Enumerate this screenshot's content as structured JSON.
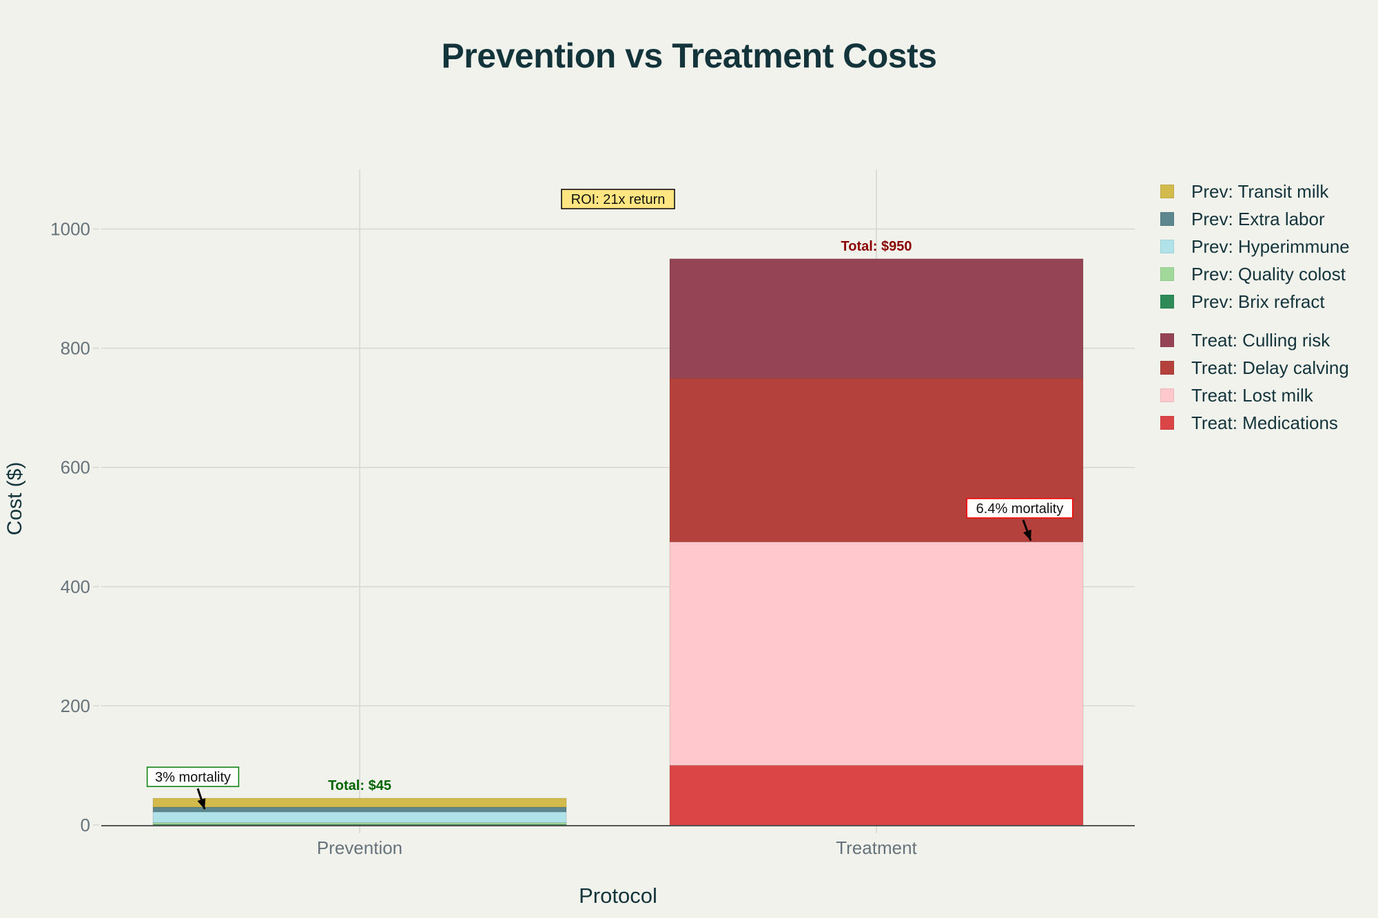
{
  "chart_data": {
    "type": "bar",
    "barmode": "stack",
    "title": "Prevention vs Treatment Costs",
    "xlabel": "Protocol",
    "ylabel": "Cost ($)",
    "categories": [
      "Prevention",
      "Treatment"
    ],
    "ylim": [
      0,
      1100
    ],
    "yticks": [
      0,
      200,
      400,
      600,
      800,
      1000
    ],
    "grid": true,
    "legend_position": "right",
    "series": [
      {
        "name": "Prev: Brix refract",
        "category": "Prevention",
        "value": 1,
        "color": "#2e8b57"
      },
      {
        "name": "Prev: Quality colost",
        "category": "Prevention",
        "value": 3,
        "color": "#a1d99b"
      },
      {
        "name": "Prev: Hyperimmune",
        "category": "Prevention",
        "value": 18,
        "color": "#b0e2ea"
      },
      {
        "name": "Prev: Extra labor",
        "category": "Prevention",
        "value": 8,
        "color": "#5d878f"
      },
      {
        "name": "Prev: Transit milk",
        "category": "Prevention",
        "value": 15,
        "color": "#d2ba4c"
      },
      {
        "name": "Treat: Medications",
        "category": "Treatment",
        "value": 100,
        "color": "#db4545"
      },
      {
        "name": "Treat: Lost milk",
        "category": "Treatment",
        "value": 375,
        "color": "#ffc8cc"
      },
      {
        "name": "Treat: Delay calving",
        "category": "Treatment",
        "value": 275,
        "color": "#b4413c"
      },
      {
        "name": "Treat: Culling risk",
        "category": "Treatment",
        "value": 200,
        "color": "#944454"
      }
    ],
    "legend_groups": [
      [
        "Prev: Transit milk",
        "Prev: Extra labor",
        "Prev: Hyperimmune",
        "Prev: Quality colost",
        "Prev: Brix refract"
      ],
      [
        "Treat: Culling risk",
        "Treat: Delay calving",
        "Treat: Lost milk",
        "Treat: Medications"
      ]
    ],
    "annotations": [
      {
        "id": "total-prevention",
        "text": "Total: $45",
        "category": "Prevention",
        "y": 45,
        "color": "#006400"
      },
      {
        "id": "total-treatment",
        "text": "Total: $950",
        "category": "Treatment",
        "y": 950,
        "color": "#8b0000"
      },
      {
        "id": "roi",
        "text": "ROI: 21x return",
        "bgcolor": "#ffe680",
        "bordercolor": "#000000"
      },
      {
        "id": "mortality-prevention",
        "text": "3% mortality",
        "category": "Prevention",
        "y": 30,
        "bordercolor": "#008000"
      },
      {
        "id": "mortality-treatment",
        "text": "6.4% mortality",
        "category": "Treatment",
        "y": 475,
        "bordercolor": "#ff0000"
      }
    ]
  }
}
